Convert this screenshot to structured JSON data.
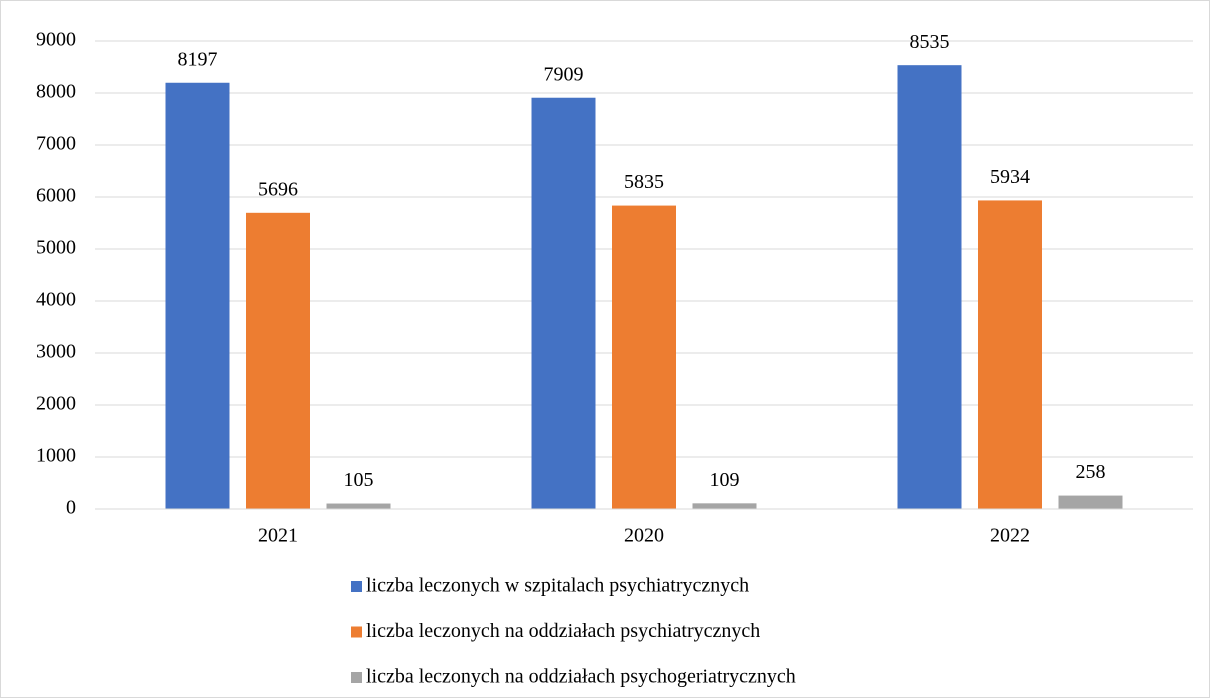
{
  "chart_data": {
    "type": "bar",
    "categories": [
      "2021",
      "2020",
      "2022"
    ],
    "series": [
      {
        "name": "liczba leczonych w szpitalach psychiatrycznych",
        "color": "#4472c4",
        "values": [
          8197,
          7909,
          8535
        ]
      },
      {
        "name": "liczba leczonych na oddziałach psychiatrycznych",
        "color": "#ed7d31",
        "values": [
          5696,
          5835,
          5934
        ]
      },
      {
        "name": "liczba leczonych na oddziałach psychogeriatrycznych",
        "color": "#a5a5a5",
        "values": [
          105,
          109,
          258
        ]
      }
    ],
    "ylim": [
      0,
      9000
    ],
    "yticks": [
      0,
      1000,
      2000,
      3000,
      4000,
      5000,
      6000,
      7000,
      8000,
      9000
    ],
    "grid": true,
    "legend": "bottom"
  }
}
